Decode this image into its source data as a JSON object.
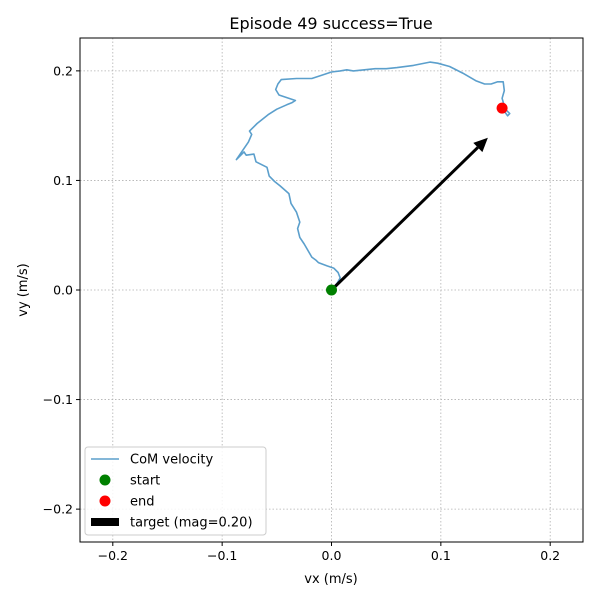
{
  "chart_data": {
    "type": "line",
    "title": "Episode 49  success=True",
    "xlabel": "vx (m/s)",
    "ylabel": "vy (m/s)",
    "xlim": [
      -0.23,
      0.23
    ],
    "ylim": [
      -0.23,
      0.23
    ],
    "xticks": [
      -0.2,
      -0.1,
      0.0,
      0.1,
      0.2
    ],
    "xtick_labels": [
      "−0.2",
      "−0.1",
      "0.0",
      "0.1",
      "0.2"
    ],
    "yticks": [
      -0.2,
      -0.1,
      0.0,
      0.1,
      0.2
    ],
    "ytick_labels": [
      "−0.2",
      "−0.1",
      "0.0",
      "0.1",
      "0.2"
    ],
    "grid": true,
    "legend_position": "lower-left",
    "series": [
      {
        "name": "CoM velocity",
        "color": "#5b9fcc",
        "points": [
          [
            0.0,
            0.0
          ],
          [
            0.005,
            0.006
          ],
          [
            0.008,
            0.011
          ],
          [
            0.006,
            0.016
          ],
          [
            0.002,
            0.02
          ],
          [
            -0.004,
            0.022
          ],
          [
            -0.012,
            0.025
          ],
          [
            -0.014,
            0.027
          ],
          [
            -0.018,
            0.03
          ],
          [
            -0.025,
            0.042
          ],
          [
            -0.029,
            0.048
          ],
          [
            -0.031,
            0.056
          ],
          [
            -0.029,
            0.062
          ],
          [
            -0.032,
            0.071
          ],
          [
            -0.037,
            0.079
          ],
          [
            -0.039,
            0.088
          ],
          [
            -0.047,
            0.095
          ],
          [
            -0.052,
            0.099
          ],
          [
            -0.057,
            0.104
          ],
          [
            -0.059,
            0.112
          ],
          [
            -0.069,
            0.117
          ],
          [
            -0.071,
            0.124
          ],
          [
            -0.078,
            0.123
          ],
          [
            -0.08,
            0.126
          ],
          [
            -0.087,
            0.119
          ],
          [
            -0.076,
            0.135
          ],
          [
            -0.073,
            0.142
          ],
          [
            -0.075,
            0.145
          ],
          [
            -0.068,
            0.152
          ],
          [
            -0.058,
            0.16
          ],
          [
            -0.05,
            0.165
          ],
          [
            -0.041,
            0.169
          ],
          [
            -0.036,
            0.171
          ],
          [
            -0.033,
            0.173
          ],
          [
            -0.048,
            0.178
          ],
          [
            -0.051,
            0.183
          ],
          [
            -0.049,
            0.188
          ],
          [
            -0.046,
            0.192
          ],
          [
            -0.032,
            0.193
          ],
          [
            -0.018,
            0.193
          ],
          [
            -0.009,
            0.196
          ],
          [
            0.0,
            0.199
          ],
          [
            0.008,
            0.2
          ],
          [
            0.014,
            0.201
          ],
          [
            0.02,
            0.2
          ],
          [
            0.03,
            0.201
          ],
          [
            0.04,
            0.202
          ],
          [
            0.05,
            0.202
          ],
          [
            0.06,
            0.203
          ],
          [
            0.075,
            0.205
          ],
          [
            0.09,
            0.208
          ],
          [
            0.097,
            0.207
          ],
          [
            0.108,
            0.204
          ],
          [
            0.12,
            0.198
          ],
          [
            0.132,
            0.191
          ],
          [
            0.14,
            0.188
          ],
          [
            0.146,
            0.188
          ],
          [
            0.152,
            0.19
          ],
          [
            0.157,
            0.19
          ],
          [
            0.158,
            0.182
          ],
          [
            0.156,
            0.175
          ],
          [
            0.158,
            0.168
          ],
          [
            0.16,
            0.164
          ],
          [
            0.163,
            0.161
          ],
          [
            0.161,
            0.159
          ],
          [
            0.156,
            0.166
          ]
        ]
      }
    ],
    "markers": [
      {
        "name": "start",
        "x": 0.0,
        "y": 0.0,
        "color": "#008000"
      },
      {
        "name": "end",
        "x": 0.156,
        "y": 0.166,
        "color": "#ff0000"
      }
    ],
    "arrow": {
      "name": "target (mag=0.20)",
      "x0": 0.0,
      "y0": 0.0,
      "dx": 0.143,
      "dy": 0.139,
      "color": "#000000"
    }
  }
}
